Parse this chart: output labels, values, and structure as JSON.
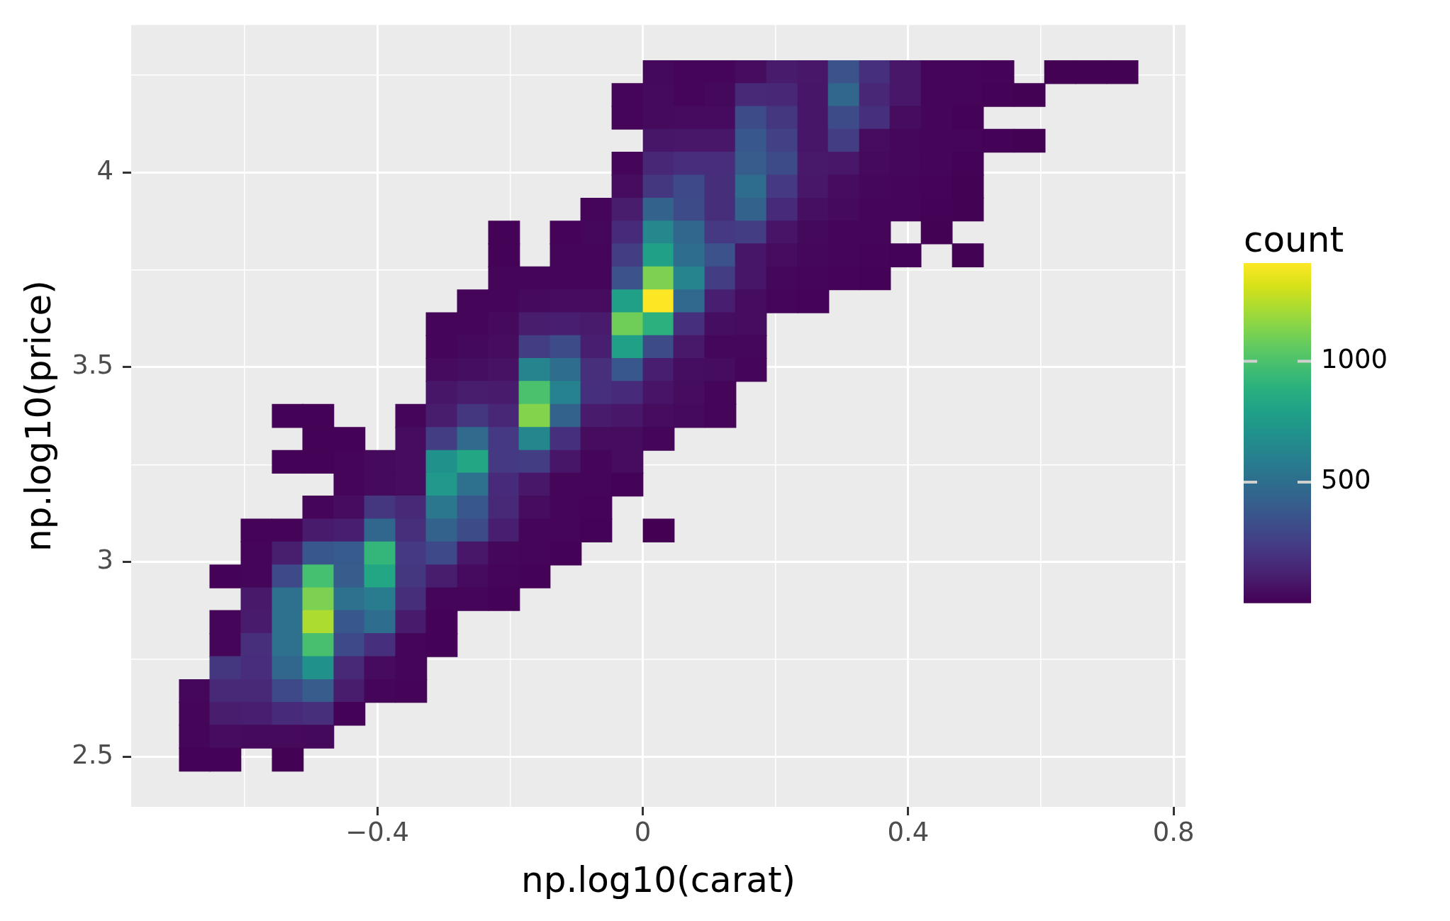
{
  "chart_data": {
    "type": "heatmap",
    "xlabel": "np.log10(carat)",
    "ylabel": "np.log10(price)",
    "clabel": "count",
    "x": [
      -0.675,
      -0.629,
      -0.582,
      -0.535,
      -0.489,
      -0.442,
      -0.396,
      -0.349,
      -0.303,
      -0.256,
      -0.209,
      -0.163,
      -0.116,
      -0.07,
      -0.023,
      0.024,
      0.07,
      0.117,
      0.163,
      0.21,
      0.257,
      0.303,
      0.35,
      0.396,
      0.443,
      0.49,
      0.536,
      0.583,
      0.629,
      0.676,
      0.723
    ],
    "y": [
      4.257,
      4.198,
      4.14,
      4.081,
      4.022,
      3.963,
      3.904,
      3.846,
      3.787,
      3.728,
      3.669,
      3.61,
      3.552,
      3.493,
      3.434,
      3.375,
      3.316,
      3.257,
      3.199,
      3.14,
      3.081,
      3.022,
      2.963,
      2.905,
      2.846,
      2.787,
      2.728,
      2.669,
      2.611,
      2.552,
      2.493
    ],
    "cells": [
      [
        null,
        null,
        null,
        null,
        null,
        null,
        null,
        null,
        null,
        null,
        null,
        null,
        null,
        null,
        null,
        30,
        15,
        15,
        45,
        100,
        85,
        350,
        190,
        85,
        20,
        15,
        12,
        null,
        5,
        5,
        5
      ],
      [
        null,
        null,
        null,
        null,
        null,
        null,
        null,
        null,
        null,
        null,
        null,
        null,
        null,
        null,
        15,
        35,
        20,
        30,
        160,
        150,
        80,
        460,
        150,
        85,
        20,
        15,
        10,
        5,
        null,
        null,
        null
      ],
      [
        null,
        null,
        null,
        null,
        null,
        null,
        null,
        null,
        null,
        null,
        null,
        null,
        null,
        null,
        20,
        35,
        40,
        40,
        320,
        220,
        80,
        320,
        190,
        45,
        20,
        10,
        null,
        null,
        null,
        null,
        null
      ],
      [
        null,
        null,
        null,
        null,
        null,
        null,
        null,
        null,
        null,
        null,
        null,
        null,
        null,
        null,
        null,
        80,
        85,
        85,
        380,
        270,
        80,
        250,
        45,
        25,
        20,
        15,
        10,
        5,
        null,
        null,
        null
      ],
      [
        null,
        null,
        null,
        null,
        null,
        null,
        null,
        null,
        null,
        null,
        null,
        null,
        null,
        null,
        20,
        150,
        175,
        175,
        410,
        320,
        90,
        85,
        35,
        25,
        15,
        8,
        null,
        null,
        null,
        null,
        null
      ],
      [
        null,
        null,
        null,
        null,
        null,
        null,
        null,
        null,
        null,
        null,
        null,
        null,
        null,
        null,
        45,
        220,
        310,
        180,
        500,
        230,
        85,
        45,
        25,
        20,
        12,
        6,
        null,
        null,
        null,
        null,
        null
      ],
      [
        null,
        null,
        null,
        null,
        null,
        null,
        null,
        null,
        null,
        null,
        null,
        null,
        null,
        20,
        110,
        440,
        320,
        180,
        440,
        165,
        55,
        35,
        20,
        15,
        10,
        5,
        null,
        null,
        null,
        null,
        null
      ],
      [
        null,
        null,
        null,
        null,
        null,
        null,
        null,
        null,
        null,
        null,
        8,
        null,
        12,
        25,
        170,
        650,
        460,
        230,
        250,
        75,
        30,
        20,
        15,
        null,
        3,
        null,
        null,
        null,
        null,
        null,
        null
      ],
      [
        null,
        null,
        null,
        null,
        null,
        null,
        null,
        null,
        null,
        null,
        10,
        null,
        15,
        20,
        250,
        800,
        500,
        350,
        80,
        45,
        25,
        20,
        12,
        8,
        null,
        3,
        null,
        null,
        null,
        null,
        null
      ],
      [
        null,
        null,
        null,
        null,
        null,
        null,
        null,
        null,
        null,
        null,
        15,
        15,
        15,
        20,
        350,
        1125,
        630,
        250,
        80,
        25,
        20,
        12,
        8,
        null,
        null,
        null,
        null,
        null,
        null,
        null,
        null
      ],
      [
        null,
        null,
        null,
        null,
        null,
        null,
        null,
        null,
        null,
        15,
        20,
        35,
        45,
        45,
        800,
        1406,
        470,
        120,
        45,
        20,
        12,
        null,
        null,
        null,
        null,
        null,
        null,
        null,
        null,
        null,
        null
      ],
      [
        null,
        null,
        null,
        null,
        null,
        null,
        null,
        null,
        15,
        20,
        35,
        110,
        120,
        100,
        1095,
        890,
        190,
        50,
        45,
        null,
        null,
        null,
        null,
        null,
        null,
        null,
        null,
        null,
        null,
        null,
        null
      ],
      [
        null,
        null,
        null,
        null,
        null,
        null,
        null,
        null,
        15,
        30,
        45,
        250,
        320,
        120,
        800,
        320,
        90,
        25,
        25,
        null,
        null,
        null,
        null,
        null,
        null,
        null,
        null,
        null,
        null,
        null,
        null
      ],
      [
        null,
        null,
        null,
        null,
        null,
        null,
        null,
        null,
        40,
        50,
        65,
        630,
        500,
        185,
        380,
        120,
        50,
        45,
        20,
        null,
        null,
        null,
        null,
        null,
        null,
        null,
        null,
        null,
        null,
        null,
        null
      ],
      [
        null,
        null,
        null,
        null,
        null,
        null,
        null,
        null,
        80,
        110,
        100,
        1000,
        615,
        190,
        170,
        75,
        45,
        20,
        null,
        null,
        null,
        null,
        null,
        null,
        null,
        null,
        null,
        null,
        null,
        null,
        null
      ],
      [
        null,
        null,
        null,
        8,
        8,
        null,
        null,
        15,
        110,
        220,
        150,
        1140,
        440,
        100,
        85,
        45,
        35,
        15,
        null,
        null,
        null,
        null,
        null,
        null,
        null,
        null,
        null,
        null,
        null,
        null,
        null
      ],
      [
        null,
        null,
        null,
        null,
        8,
        10,
        null,
        45,
        250,
        480,
        230,
        640,
        190,
        45,
        45,
        15,
        null,
        null,
        null,
        null,
        null,
        null,
        null,
        null,
        null,
        null,
        null,
        null,
        null,
        null,
        null
      ],
      [
        null,
        null,
        null,
        8,
        10,
        15,
        35,
        45,
        705,
        830,
        230,
        250,
        80,
        20,
        45,
        null,
        null,
        null,
        null,
        null,
        null,
        null,
        null,
        null,
        null,
        null,
        null,
        null,
        null,
        null,
        null
      ],
      [
        null,
        null,
        null,
        null,
        null,
        15,
        35,
        45,
        745,
        520,
        170,
        85,
        20,
        15,
        10,
        null,
        null,
        null,
        null,
        null,
        null,
        null,
        null,
        null,
        null,
        null,
        null,
        null,
        null,
        null,
        null
      ],
      [
        null,
        null,
        null,
        null,
        15,
        45,
        220,
        160,
        555,
        380,
        160,
        45,
        20,
        12,
        null,
        null,
        null,
        null,
        null,
        null,
        null,
        null,
        null,
        null,
        null,
        null,
        null,
        null,
        null,
        null,
        null
      ],
      [
        null,
        null,
        12,
        12,
        100,
        120,
        465,
        185,
        440,
        325,
        120,
        20,
        15,
        10,
        null,
        2,
        null,
        null,
        null,
        null,
        null,
        null,
        null,
        null,
        null,
        null,
        null,
        null,
        null,
        null,
        null
      ],
      [
        null,
        null,
        15,
        115,
        380,
        400,
        925,
        230,
        310,
        85,
        25,
        20,
        10,
        null,
        null,
        null,
        null,
        null,
        null,
        null,
        null,
        null,
        null,
        null,
        null,
        null,
        null,
        null,
        null,
        null,
        null
      ],
      [
        null,
        10,
        15,
        310,
        985,
        410,
        830,
        220,
        110,
        40,
        20,
        10,
        null,
        null,
        null,
        null,
        null,
        null,
        null,
        null,
        null,
        null,
        null,
        null,
        null,
        null,
        null,
        null,
        null,
        null,
        null
      ],
      [
        null,
        null,
        90,
        520,
        1125,
        520,
        575,
        180,
        20,
        15,
        8,
        null,
        null,
        null,
        null,
        null,
        null,
        null,
        null,
        null,
        null,
        null,
        null,
        null,
        null,
        null,
        null,
        null,
        null,
        null,
        null
      ],
      [
        null,
        20,
        100,
        520,
        1230,
        380,
        500,
        100,
        10,
        null,
        null,
        null,
        null,
        null,
        null,
        null,
        null,
        null,
        null,
        null,
        null,
        null,
        null,
        null,
        null,
        null,
        null,
        null,
        null,
        null,
        null
      ],
      [
        null,
        20,
        185,
        520,
        990,
        310,
        190,
        15,
        8,
        null,
        null,
        null,
        null,
        null,
        null,
        null,
        null,
        null,
        null,
        null,
        null,
        null,
        null,
        null,
        null,
        null,
        null,
        null,
        null,
        null,
        null
      ],
      [
        null,
        220,
        175,
        465,
        705,
        160,
        40,
        15,
        null,
        null,
        null,
        null,
        null,
        null,
        null,
        null,
        null,
        null,
        null,
        null,
        null,
        null,
        null,
        null,
        null,
        null,
        null,
        null,
        null,
        null,
        null
      ],
      [
        25,
        160,
        160,
        310,
        410,
        110,
        15,
        12,
        null,
        null,
        null,
        null,
        null,
        null,
        null,
        null,
        null,
        null,
        null,
        null,
        null,
        null,
        null,
        null,
        null,
        null,
        null,
        null,
        null,
        null,
        null
      ],
      [
        20,
        110,
        120,
        170,
        185,
        10,
        null,
        null,
        null,
        null,
        null,
        null,
        null,
        null,
        null,
        null,
        null,
        null,
        null,
        null,
        null,
        null,
        null,
        null,
        null,
        null,
        null,
        null,
        null,
        null,
        null
      ],
      [
        15,
        45,
        35,
        35,
        30,
        null,
        null,
        null,
        null,
        null,
        null,
        null,
        null,
        null,
        null,
        null,
        null,
        null,
        null,
        null,
        null,
        null,
        null,
        null,
        null,
        null,
        null,
        null,
        null,
        null,
        null
      ],
      [
        10,
        8,
        null,
        6,
        null,
        null,
        null,
        null,
        null,
        null,
        null,
        null,
        null,
        null,
        null,
        null,
        null,
        null,
        null,
        null,
        null,
        null,
        null,
        null,
        null,
        null,
        null,
        null,
        null,
        null,
        null
      ]
    ],
    "xlim": [
      -0.771,
      0.818
    ],
    "ylim": [
      2.372,
      4.378
    ],
    "xticks": [
      {
        "value": -0.6,
        "label": null
      },
      {
        "value": -0.4,
        "label": "−0.4"
      },
      {
        "value": -0.2,
        "label": null
      },
      0,
      {
        "value": 0.2,
        "label": null
      },
      0.4,
      {
        "value": 0.6,
        "label": null
      },
      0.8
    ],
    "yticks": [
      2.5,
      {
        "value": 2.75,
        "label": null
      },
      3,
      {
        "value": 3.25,
        "label": null
      },
      3.5,
      {
        "value": 3.75,
        "label": null
      },
      4,
      {
        "value": 4.25,
        "label": null
      }
    ],
    "clim": [
      1,
      1406
    ],
    "cticks": [
      500,
      1000
    ],
    "grid": true
  }
}
